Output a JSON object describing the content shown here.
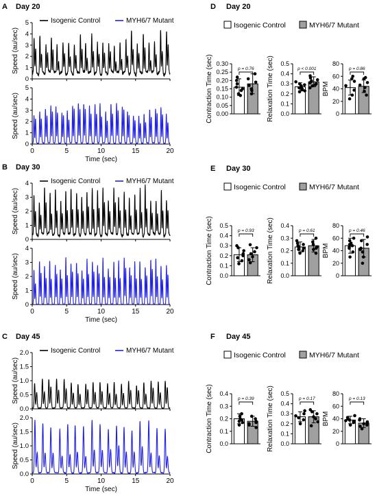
{
  "figure": {
    "panels_left": [
      {
        "letter": "A",
        "day": "Day 20",
        "legend": [
          "Isogenic Control",
          "MYH6/7 Mutant"
        ],
        "top_ylabel": "Speed (au/sec)",
        "bottom_ylabel": "Speed (au/sec)",
        "xlabel": "Time (sec)"
      },
      {
        "letter": "B",
        "day": "Day 30",
        "legend": [
          "Isogenic Control",
          "MYH6/7 Mutant"
        ],
        "top_ylabel": "Speed (au/sec)",
        "bottom_ylabel": "Speed (au/sec)",
        "xlabel": "Time (sec)"
      },
      {
        "letter": "C",
        "day": "Day 45",
        "legend": [
          "Isogenic Control",
          "MYH6/7 Mutant"
        ],
        "top_ylabel": "Speed (au/sec)",
        "bottom_ylabel": "Speed (au/sec)",
        "xlabel": "Time (sec)"
      }
    ],
    "panels_right": [
      {
        "letter": "D",
        "day": "Day 20",
        "legend": [
          "Isogenic Control",
          "MYH6/7 Mutant"
        ],
        "subplots": [
          {
            "ylabel": "Contraction Time (sec)",
            "p": "p = 0.76"
          },
          {
            "ylabel": "Relaxation Time (sec)",
            "p": "p < 0.001"
          },
          {
            "ylabel": "BPM",
            "p": "p = 0.86"
          }
        ]
      },
      {
        "letter": "E",
        "day": "Day 30",
        "legend": [
          "Isogenic Control",
          "MYH6/7 Mutant"
        ],
        "subplots": [
          {
            "ylabel": "Contraction Time (sec)",
            "p": "p = 0.93"
          },
          {
            "ylabel": "Relaxation Time (sec)",
            "p": "p = 0.61"
          },
          {
            "ylabel": "BPM",
            "p": "p = 0.46"
          }
        ]
      },
      {
        "letter": "F",
        "day": "Day 45",
        "legend": [
          "Isogenic Control",
          "MYH6/7 Mutant"
        ],
        "subplots": [
          {
            "ylabel": "Contraction Time (sec)",
            "p": "p = 0.39"
          },
          {
            "ylabel": "Relaxation Time (sec)",
            "p": "p = 0.17"
          },
          {
            "ylabel": "BPM",
            "p": "p = 0.13"
          }
        ]
      }
    ]
  },
  "colors": {
    "control": "#000000",
    "mutant": "#1f1fe6",
    "mutant_bar": "#a0a0a0",
    "control_bar": "#ffffff",
    "axis": "#000000"
  },
  "chart_data": [
    {
      "id": "A-top",
      "type": "line",
      "xlim": [
        0,
        20
      ],
      "ylim": [
        0,
        5
      ],
      "xticks": [
        "0",
        "5",
        "10",
        "15",
        "20"
      ],
      "yticks": [
        "0",
        "1",
        "2",
        "3",
        "4",
        "5"
      ],
      "series": [
        {
          "name": "Isogenic Control",
          "color": "#000000",
          "beats": 24,
          "peak_mean": 3.1,
          "peak_var": 0.7,
          "baseline": 0.9,
          "double": 0.55
        }
      ]
    },
    {
      "id": "A-bottom",
      "type": "line",
      "xlim": [
        0,
        20
      ],
      "ylim": [
        0,
        5
      ],
      "xticks": [
        "0",
        "5",
        "10",
        "15",
        "20"
      ],
      "yticks": [
        "0",
        "1",
        "2",
        "3",
        "4",
        "5"
      ],
      "series": [
        {
          "name": "MYH6/7 Mutant",
          "color": "#1f1fe6",
          "beats": 25,
          "peak_mean": 3.0,
          "peak_var": 0.6,
          "baseline": 0.15,
          "double": 0.8
        }
      ]
    },
    {
      "id": "B-top",
      "type": "line",
      "xlim": [
        0,
        20
      ],
      "ylim": [
        0,
        4
      ],
      "xticks": [
        "0",
        "5",
        "10",
        "15",
        "20"
      ],
      "yticks": [
        "0",
        "1",
        "2",
        "3",
        "4"
      ],
      "series": [
        {
          "name": "Isogenic Control",
          "color": "#000000",
          "beats": 26,
          "peak_mean": 2.9,
          "peak_var": 0.6,
          "baseline": 0.6,
          "double": 0.6
        }
      ]
    },
    {
      "id": "B-bottom",
      "type": "line",
      "xlim": [
        0,
        20
      ],
      "ylim": [
        0,
        4
      ],
      "xticks": [
        "0",
        "5",
        "10",
        "15",
        "20"
      ],
      "yticks": [
        "0",
        "1",
        "2",
        "3",
        "4"
      ],
      "series": [
        {
          "name": "MYH6/7 Mutant",
          "color": "#1f1fe6",
          "beats": 26,
          "peak_mean": 2.9,
          "peak_var": 0.5,
          "baseline": 0.05,
          "double": 0.7
        }
      ]
    },
    {
      "id": "C-top",
      "type": "line",
      "xlim": [
        0,
        20
      ],
      "ylim": [
        0,
        2.0
      ],
      "xticks": [
        "0",
        "5",
        "10",
        "15",
        "20"
      ],
      "yticks": [
        "0.0",
        "0.5",
        "1.0",
        "1.5",
        "2.0"
      ],
      "series": [
        {
          "name": "Isogenic Control",
          "color": "#000000",
          "beats": 19,
          "peak_mean": 0.92,
          "peak_var": 0.12,
          "baseline": 0.05,
          "double": 0.65
        }
      ]
    },
    {
      "id": "C-bottom",
      "type": "line",
      "xlim": [
        0,
        20
      ],
      "ylim": [
        0,
        2.0
      ],
      "xticks": [
        "0",
        "5",
        "10",
        "15",
        "20"
      ],
      "yticks": [
        "0.0",
        "0.5",
        "1.0",
        "1.5",
        "2.0"
      ],
      "series": [
        {
          "name": "MYH6/7 Mutant",
          "color": "#1f1fe6",
          "beats": 17,
          "peak_mean": 1.7,
          "peak_var": 0.2,
          "baseline": 0.07,
          "double": 0.45
        }
      ]
    },
    {
      "id": "D-contraction",
      "type": "bar",
      "ylim": [
        0,
        0.3
      ],
      "yticks": [
        "0.00",
        "0.05",
        "0.10",
        "0.15",
        "0.20",
        "0.25",
        "0.30"
      ],
      "categories": [
        "Isogenic Control",
        "MYH6/7 Mutant"
      ],
      "values": [
        0.16,
        0.18
      ],
      "sd": [
        0.05,
        0.06
      ],
      "points": [
        [
          0.12,
          0.14,
          0.15,
          0.16,
          0.18,
          0.2,
          0.22,
          0.11
        ],
        [
          0.12,
          0.15,
          0.17,
          0.19,
          0.21,
          0.24,
          0.14
        ]
      ]
    },
    {
      "id": "D-relaxation",
      "type": "bar",
      "ylim": [
        0,
        0.5
      ],
      "yticks": [
        "0.0",
        "0.1",
        "0.2",
        "0.3",
        "0.4",
        "0.5"
      ],
      "categories": [
        "Isogenic Control",
        "MYH6/7 Mutant"
      ],
      "values": [
        0.27,
        0.32
      ],
      "sd": [
        0.04,
        0.05
      ],
      "points": [
        [
          0.22,
          0.24,
          0.26,
          0.27,
          0.28,
          0.3,
          0.32,
          0.25,
          0.29,
          0.23
        ],
        [
          0.26,
          0.28,
          0.3,
          0.32,
          0.34,
          0.36,
          0.38,
          0.31,
          0.33,
          0.29
        ]
      ]
    },
    {
      "id": "D-bpm",
      "type": "bar",
      "ylim": [
        0,
        80
      ],
      "yticks": [
        "0",
        "20",
        "40",
        "60",
        "80"
      ],
      "categories": [
        "Isogenic Control",
        "MYH6/7 Mutant"
      ],
      "values": [
        42,
        44
      ],
      "sd": [
        12,
        10
      ],
      "points": [
        [
          24,
          30,
          38,
          45,
          52,
          56,
          60
        ],
        [
          30,
          36,
          42,
          46,
          50,
          56,
          58
        ]
      ]
    },
    {
      "id": "E-contraction",
      "type": "bar",
      "ylim": [
        0,
        0.5
      ],
      "yticks": [
        "0.0",
        "0.1",
        "0.2",
        "0.3",
        "0.4",
        "0.5"
      ],
      "categories": [
        "Isogenic Control",
        "MYH6/7 Mutant"
      ],
      "values": [
        0.21,
        0.21
      ],
      "sd": [
        0.07,
        0.07
      ],
      "points": [
        [
          0.12,
          0.15,
          0.18,
          0.2,
          0.22,
          0.25,
          0.28,
          0.3
        ],
        [
          0.13,
          0.16,
          0.19,
          0.22,
          0.24,
          0.28,
          0.31
        ]
      ]
    },
    {
      "id": "E-relaxation",
      "type": "bar",
      "ylim": [
        0,
        0.4
      ],
      "yticks": [
        "0.0",
        "0.1",
        "0.2",
        "0.3",
        "0.4"
      ],
      "categories": [
        "Isogenic Control",
        "MYH6/7 Mutant"
      ],
      "values": [
        0.23,
        0.24
      ],
      "sd": [
        0.04,
        0.05
      ],
      "points": [
        [
          0.18,
          0.2,
          0.22,
          0.23,
          0.24,
          0.26,
          0.28,
          0.21,
          0.25
        ],
        [
          0.18,
          0.21,
          0.23,
          0.25,
          0.27,
          0.3,
          0.22
        ]
      ]
    },
    {
      "id": "E-bpm",
      "type": "bar",
      "ylim": [
        0,
        80
      ],
      "yticks": [
        "0",
        "20",
        "40",
        "60",
        "80"
      ],
      "categories": [
        "Isogenic Control",
        "MYH6/7 Mutant"
      ],
      "values": [
        48,
        44
      ],
      "sd": [
        12,
        14
      ],
      "points": [
        [
          30,
          38,
          44,
          48,
          52,
          56,
          60,
          46,
          50
        ],
        [
          20,
          30,
          38,
          44,
          50,
          56,
          62,
          42
        ]
      ]
    },
    {
      "id": "F-contraction",
      "type": "bar",
      "ylim": [
        0,
        0.4
      ],
      "yticks": [
        "0.0",
        "0.1",
        "0.2",
        "0.3",
        "0.4"
      ],
      "categories": [
        "Isogenic Control",
        "MYH6/7 Mutant"
      ],
      "values": [
        0.2,
        0.18
      ],
      "sd": [
        0.04,
        0.04
      ],
      "points": [
        [
          0.15,
          0.17,
          0.19,
          0.2,
          0.22,
          0.24,
          0.18
        ],
        [
          0.13,
          0.15,
          0.17,
          0.18,
          0.2,
          0.22,
          0.16
        ]
      ]
    },
    {
      "id": "F-relaxation",
      "type": "bar",
      "ylim": [
        0,
        0.5
      ],
      "yticks": [
        "0.0",
        "0.1",
        "0.2",
        "0.3",
        "0.4",
        "0.5"
      ],
      "categories": [
        "Isogenic Control",
        "MYH6/7 Mutant"
      ],
      "values": [
        0.27,
        0.27
      ],
      "sd": [
        0.05,
        0.06
      ],
      "points": [
        [
          0.2,
          0.24,
          0.26,
          0.28,
          0.3,
          0.33
        ],
        [
          0.18,
          0.22,
          0.25,
          0.27,
          0.3,
          0.32,
          0.34
        ]
      ]
    },
    {
      "id": "F-bpm",
      "type": "bar",
      "ylim": [
        0,
        80
      ],
      "yticks": [
        "0",
        "20",
        "40",
        "60",
        "80"
      ],
      "categories": [
        "Isogenic Control",
        "MYH6/7 Mutant"
      ],
      "values": [
        38,
        33
      ],
      "sd": [
        6,
        7
      ],
      "points": [
        [
          30,
          34,
          36,
          38,
          40,
          42,
          45,
          37
        ],
        [
          24,
          28,
          30,
          33,
          35,
          38,
          40,
          32
        ]
      ]
    }
  ]
}
